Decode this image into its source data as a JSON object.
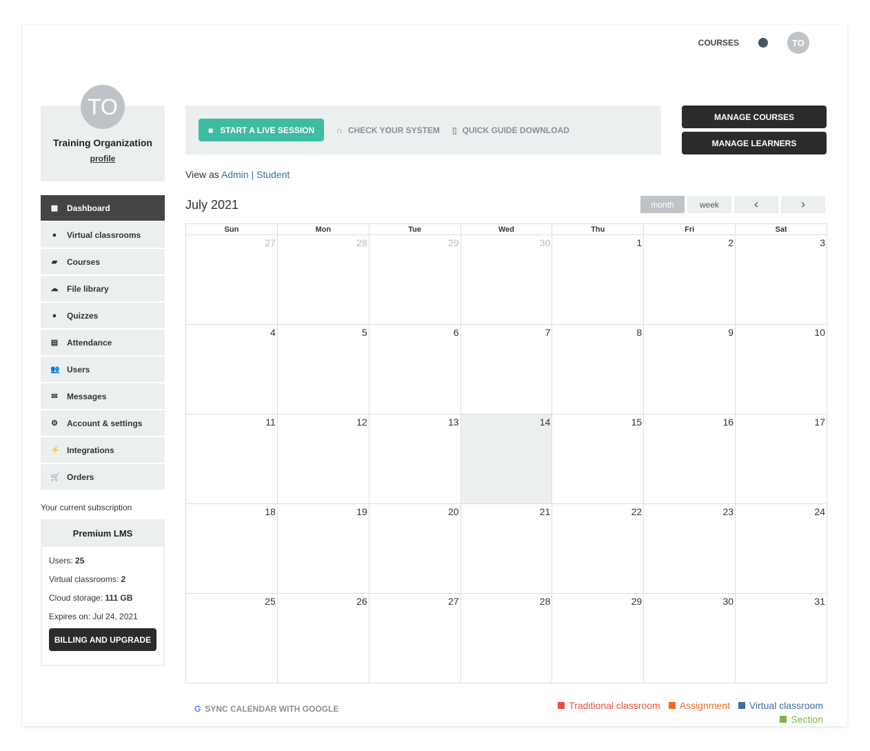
{
  "topnav": {
    "courses": "COURSES",
    "avatar": "TO"
  },
  "profile": {
    "initials": "TO",
    "name": "Training Organization",
    "link": "profile"
  },
  "sidebar": {
    "items": [
      {
        "label": "Dashboard",
        "icon": "dashboard-icon",
        "glyph": "▦"
      },
      {
        "label": "Virtual classrooms",
        "icon": "play-circle-icon",
        "glyph": "●"
      },
      {
        "label": "Courses",
        "icon": "book-icon",
        "glyph": "▰"
      },
      {
        "label": "File library",
        "icon": "cloud-upload-icon",
        "glyph": "☁"
      },
      {
        "label": "Quizzes",
        "icon": "question-circle-icon",
        "glyph": "●"
      },
      {
        "label": "Attendance",
        "icon": "document-icon",
        "glyph": "▤"
      },
      {
        "label": "Users",
        "icon": "users-icon",
        "glyph": "👥"
      },
      {
        "label": "Messages",
        "icon": "envelope-icon",
        "glyph": "✉"
      },
      {
        "label": "Account & settings",
        "icon": "gear-icon",
        "glyph": "⚙"
      },
      {
        "label": "Integrations",
        "icon": "plug-icon",
        "glyph": "⚡"
      },
      {
        "label": "Orders",
        "icon": "cart-icon",
        "glyph": "🛒"
      }
    ]
  },
  "subscription": {
    "title": "Your current subscription",
    "plan": "Premium LMS",
    "users_label": "Users: ",
    "users": "25",
    "vc_label": "Virtual classrooms: ",
    "vc": "2",
    "storage_label": "Cloud storage: ",
    "storage": "111 GB",
    "expires": "Expires on: Jul 24, 2021",
    "button": "BILLING AND UPGRADE"
  },
  "toolbar": {
    "live": "START A LIVE SESSION",
    "check": "CHECK YOUR SYSTEM",
    "guide": "QUICK GUIDE DOWNLOAD",
    "manage_courses": "MANAGE COURSES",
    "manage_learners": "MANAGE LEARNERS"
  },
  "viewas": {
    "label": "View as ",
    "admin": "Admin",
    "sep": " | ",
    "student": "Student"
  },
  "calendar": {
    "title": "July 2021",
    "month": "month",
    "week": "week",
    "prev": "‹",
    "next": "›",
    "days": [
      "Sun",
      "Mon",
      "Tue",
      "Wed",
      "Thu",
      "Fri",
      "Sat"
    ],
    "weeks": [
      [
        27,
        28,
        29,
        30,
        1,
        2,
        3
      ],
      [
        4,
        5,
        6,
        7,
        8,
        9,
        10
      ],
      [
        11,
        12,
        13,
        14,
        15,
        16,
        17
      ],
      [
        18,
        19,
        20,
        21,
        22,
        23,
        24
      ],
      [
        25,
        26,
        27,
        28,
        29,
        30,
        31
      ]
    ],
    "other_month_first_week": 4,
    "today": 14
  },
  "sync": "SYNC CALENDAR WITH GOOGLE",
  "legend": [
    {
      "label": "Traditional classroom",
      "color": "#e8503a"
    },
    {
      "label": "Assignment",
      "color": "#f26b21"
    },
    {
      "label": "Virtual classroom",
      "color": "#3a6ea5"
    },
    {
      "label": "Section",
      "color": "#7ab648"
    }
  ],
  "colors": {
    "accent": "#3dbca3",
    "dark": "#2b2b2b",
    "panel": "#ecefef"
  }
}
